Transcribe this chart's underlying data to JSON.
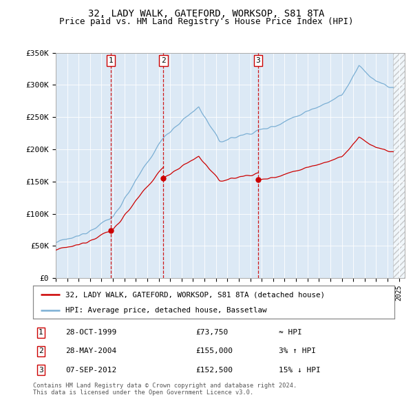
{
  "title": "32, LADY WALK, GATEFORD, WORKSOP, S81 8TA",
  "subtitle": "Price paid vs. HM Land Registry's House Price Index (HPI)",
  "ylim": [
    0,
    350000
  ],
  "yticks": [
    0,
    50000,
    100000,
    150000,
    200000,
    250000,
    300000,
    350000
  ],
  "ytick_labels": [
    "£0",
    "£50K",
    "£100K",
    "£150K",
    "£200K",
    "£250K",
    "£300K",
    "£350K"
  ],
  "xmin": 1995.0,
  "xmax": 2025.5,
  "hatch_start": 2024.5,
  "purchases": [
    {
      "num": 1,
      "date": "28-OCT-1999",
      "price": 73750,
      "year": 1999.83,
      "label": "£73,750",
      "relation": "≈ HPI"
    },
    {
      "num": 2,
      "date": "28-MAY-2004",
      "price": 155000,
      "year": 2004.41,
      "label": "£155,000",
      "relation": "3% ↑ HPI"
    },
    {
      "num": 3,
      "date": "07-SEP-2012",
      "price": 152500,
      "year": 2012.69,
      "label": "£152,500",
      "relation": "15% ↓ HPI"
    }
  ],
  "hpi_color": "#7bafd4",
  "price_color": "#cc0000",
  "vline_color": "#cc0000",
  "plot_bg": "#dce9f5",
  "legend_line_label": "32, LADY WALK, GATEFORD, WORKSOP, S81 8TA (detached house)",
  "legend_hpi_label": "HPI: Average price, detached house, Bassetlaw",
  "footnote": "Contains HM Land Registry data © Crown copyright and database right 2024.\nThis data is licensed under the Open Government Licence v3.0.",
  "title_fontsize": 10,
  "subtitle_fontsize": 9
}
